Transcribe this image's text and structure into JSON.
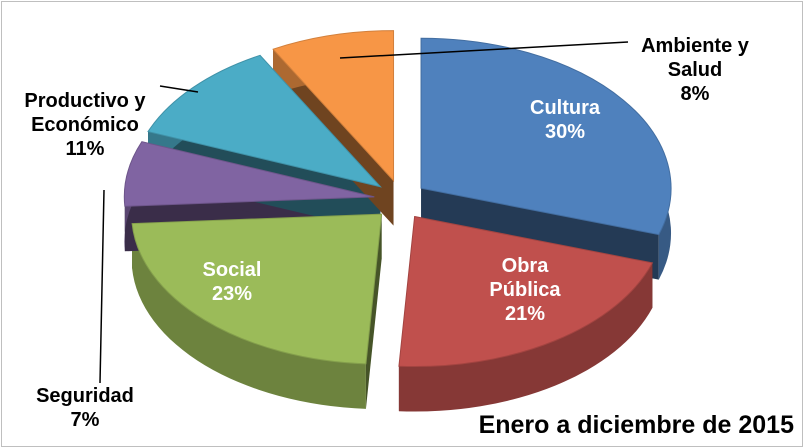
{
  "chart_data": {
    "type": "pie",
    "categories": [
      "Cultura",
      "Obra Pública",
      "Social",
      "Seguridad",
      "Productivo y Económico",
      "Ambiente y Salud"
    ],
    "values": [
      30,
      21,
      23,
      7,
      11,
      8
    ],
    "value_labels": [
      "30%",
      "21%",
      "23%",
      "7%",
      "11%",
      "8%"
    ],
    "colors": [
      "#4f81bd",
      "#c0504d",
      "#9bbb59",
      "#8064a2",
      "#4bacc6",
      "#f79646"
    ],
    "annotation": "Enero a diciembre de 2015"
  }
}
